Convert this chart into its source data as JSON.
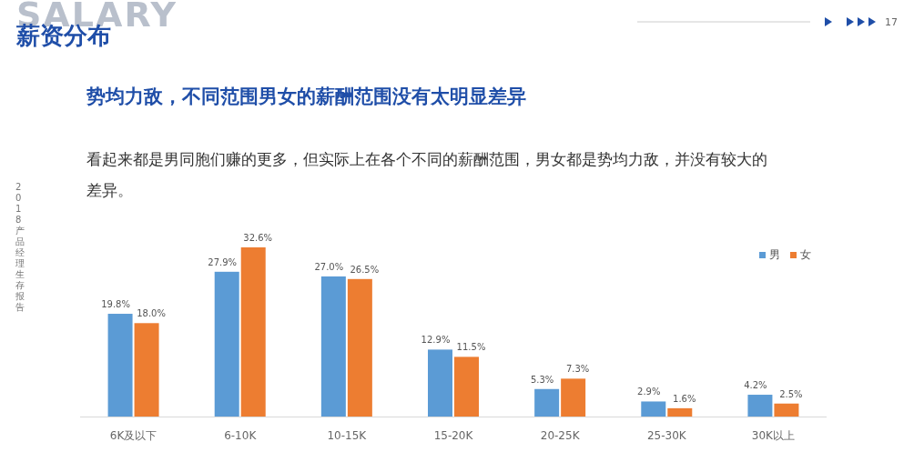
{
  "chart_data": {
    "type": "bar",
    "title": "薪资分布",
    "subtitle": "势均力敌，不同范围男女的薪酬范围没有太明显差异",
    "annotations": [
      "看起来都是男同胞们赚的更多，但实际上在各个不同的薪酬范围，男女都是势均力敌，并没有较大的差异。",
      "SALARY",
      "2018产品经理生存报告",
      "17"
    ],
    "categories": [
      "6K及以下",
      "6-10K",
      "10-15K",
      "15-20K",
      "20-25K",
      "25-30K",
      "30K以上"
    ],
    "series": [
      {
        "name": "男",
        "color": "#5b9bd5",
        "values": [
          19.8,
          27.9,
          27.0,
          12.9,
          5.3,
          2.9,
          4.2
        ],
        "value_labels": [
          "19.8%",
          "27.9%",
          "27.0%",
          "12.9%",
          "5.3%",
          "2.9%",
          "4.2%"
        ]
      },
      {
        "name": "女",
        "color": "#ed7d31",
        "values": [
          18.0,
          32.6,
          26.5,
          11.5,
          7.3,
          1.6,
          2.5
        ],
        "value_labels": [
          "18.0%",
          "32.6%",
          "26.5%",
          "11.5%",
          "7.3%",
          "1.6%",
          "2.5%"
        ]
      }
    ],
    "relative": false,
    "legend": "top right"
  }
}
